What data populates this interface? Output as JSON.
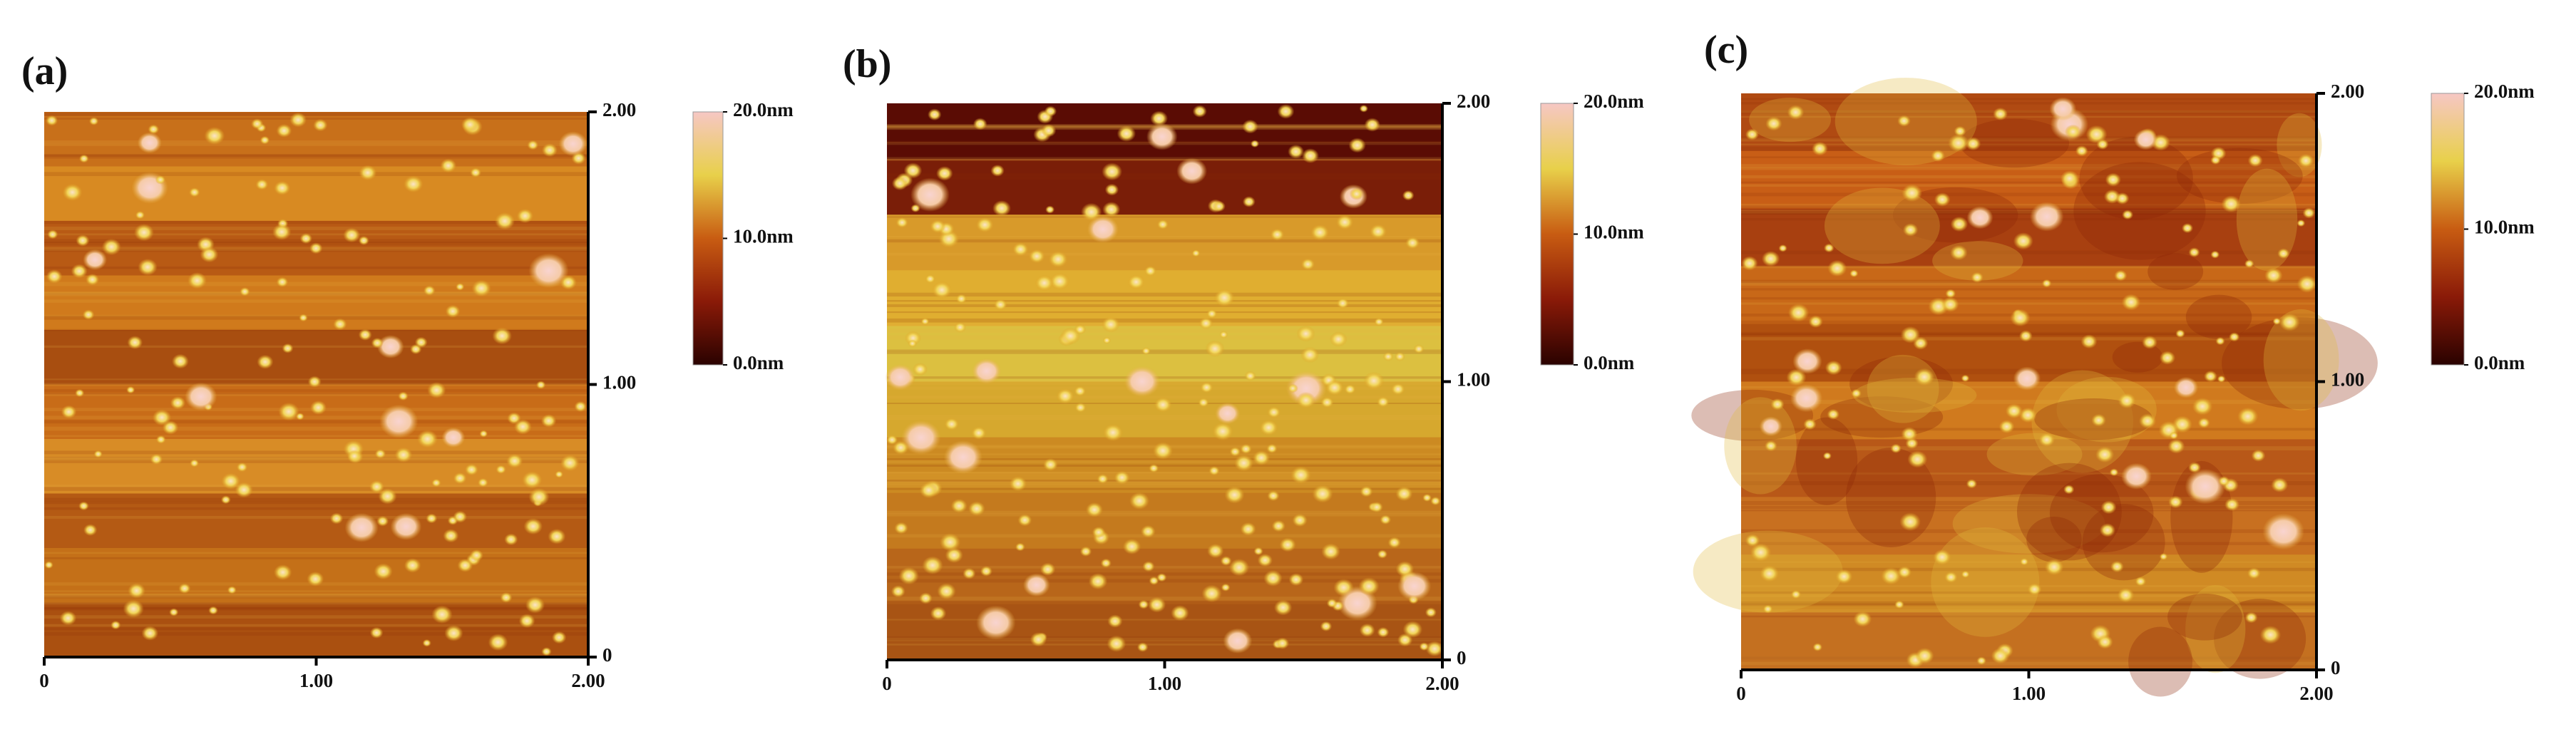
{
  "panels": [
    {
      "label": "(a)",
      "xticks": [
        0,
        {
          "value": 1,
          "label": "1.00"
        },
        {
          "value": 2,
          "label": "2.00"
        }
      ],
      "yticks": [
        0,
        {
          "value": 1,
          "label": "1.00"
        },
        {
          "value": 2,
          "label": "2.00"
        }
      ],
      "colorbar": [
        {
          "value": 20,
          "label": "20.0nm"
        },
        {
          "value": 10,
          "label": "10.0nm"
        },
        {
          "value": 0,
          "label": "0.0nm"
        }
      ]
    },
    {
      "label": "(b)",
      "xticks": [
        0,
        {
          "value": 1,
          "label": "1.00"
        },
        {
          "value": 2,
          "label": "2.00"
        }
      ],
      "yticks": [
        0,
        {
          "value": 1,
          "label": "1.00"
        },
        {
          "value": 2,
          "label": "2.00"
        }
      ],
      "colorbar": [
        {
          "value": 20,
          "label": "20.0nm"
        },
        {
          "value": 10,
          "label": "10.0nm"
        },
        {
          "value": 0,
          "label": "0.0nm"
        }
      ]
    },
    {
      "label": "(c)",
      "xticks": [
        0,
        {
          "value": 1,
          "label": "1.00"
        },
        {
          "value": 2,
          "label": "2.00"
        }
      ],
      "yticks": [
        0,
        {
          "value": 1,
          "label": "1.00"
        },
        {
          "value": 2,
          "label": "2.00"
        }
      ],
      "colorbar": [
        {
          "value": 20,
          "label": "20.0nm"
        },
        {
          "value": 10,
          "label": "10.0nm"
        },
        {
          "value": 0,
          "label": "0.0nm"
        }
      ]
    }
  ]
}
